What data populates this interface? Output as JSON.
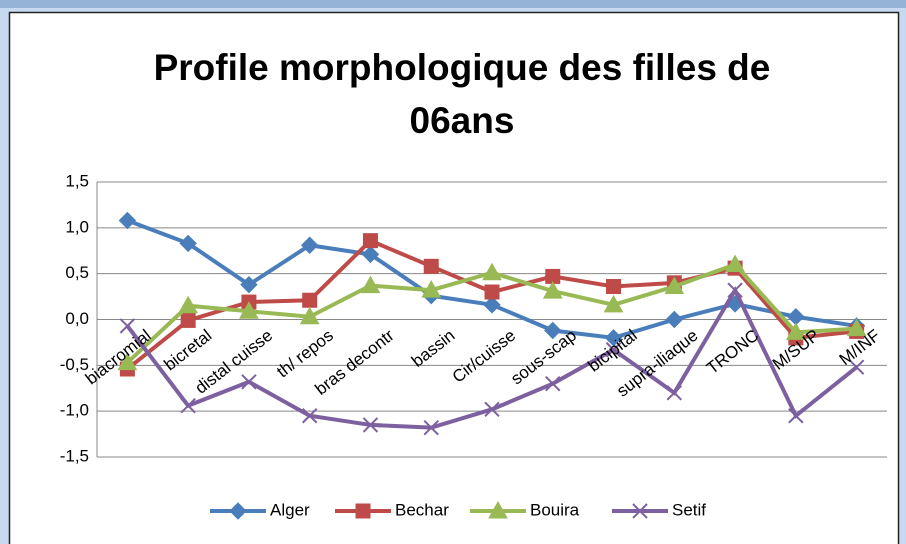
{
  "chart_data": {
    "type": "line",
    "title": "Profile morphologique des filles de",
    "title_line2": "06ans",
    "categories": [
      "biacromial",
      "bicretal",
      "distal cuisse",
      "th/  repos",
      "bras decontr",
      "bassin",
      "Cir/cuisse",
      "sous-scap",
      "bicipital",
      "supra-iliaque",
      "TRONC",
      "M/SUP",
      "M/INF"
    ],
    "series": [
      {
        "name": "Alger",
        "color": "#4a7ebb",
        "marker": "diamond",
        "values": [
          1.08,
          0.83,
          0.38,
          0.81,
          0.71,
          0.26,
          0.16,
          -0.12,
          -0.2,
          0.0,
          0.17,
          0.03,
          -0.07
        ]
      },
      {
        "name": "Bechar",
        "color": "#be4b48",
        "marker": "square",
        "values": [
          -0.54,
          -0.01,
          0.19,
          0.21,
          0.86,
          0.58,
          0.3,
          0.47,
          0.36,
          0.4,
          0.56,
          -0.2,
          -0.13
        ]
      },
      {
        "name": "Bouira",
        "color": "#98b954",
        "marker": "triangle",
        "values": [
          -0.47,
          0.15,
          0.09,
          0.03,
          0.37,
          0.32,
          0.51,
          0.31,
          0.16,
          0.36,
          0.6,
          -0.14,
          -0.1
        ]
      },
      {
        "name": "Setif",
        "color": "#7d60a0",
        "marker": "x",
        "values": [
          -0.07,
          -0.94,
          -0.68,
          -1.05,
          -1.15,
          -1.18,
          -0.98,
          -0.7,
          -0.33,
          -0.8,
          0.32,
          -1.05,
          -0.52
        ]
      }
    ],
    "ylim": [
      -1.5,
      1.5
    ],
    "yticks": [
      {
        "value": -1.5,
        "label": "-1,5"
      },
      {
        "value": -1.0,
        "label": "-1,0"
      },
      {
        "value": -0.5,
        "label": "-0,5"
      },
      {
        "value": 0,
        "label": "0,0"
      },
      {
        "value": 0.5,
        "label": "0,5"
      },
      {
        "value": 1.0,
        "label": "1,0"
      },
      {
        "value": 1.5,
        "label": "1,5"
      }
    ],
    "grid": true,
    "legend": "bottom"
  }
}
